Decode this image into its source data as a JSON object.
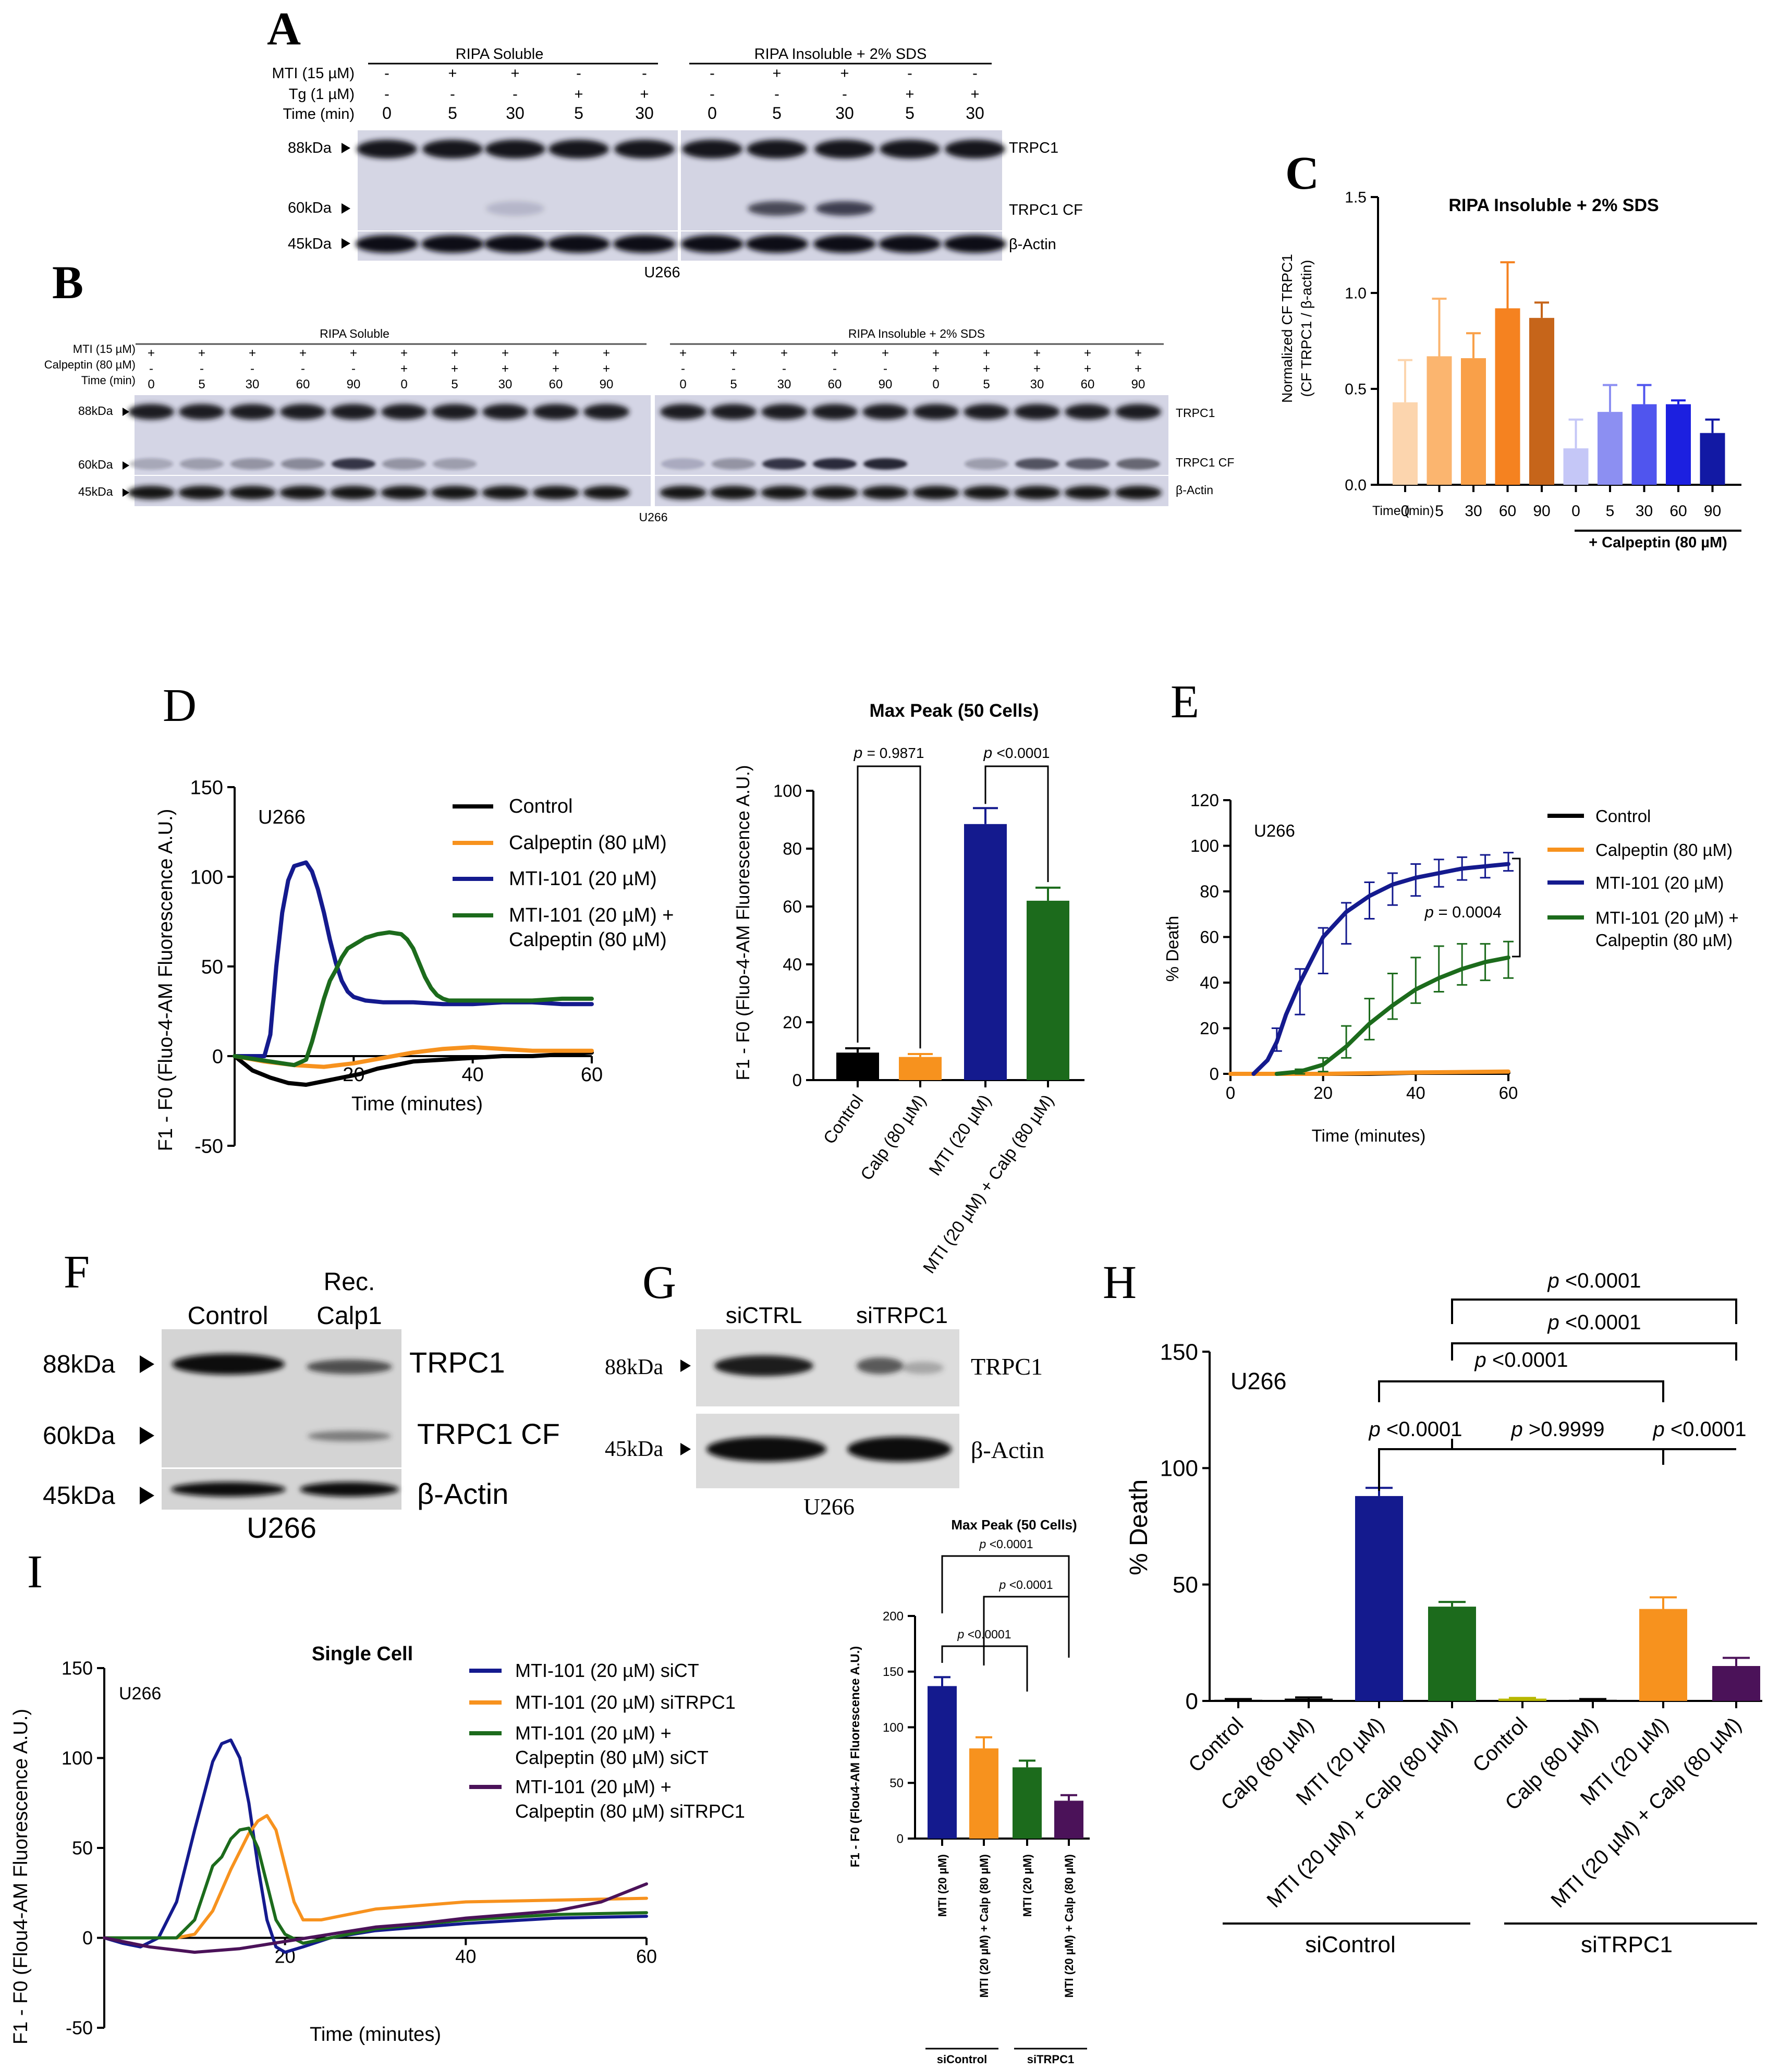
{
  "panels": {
    "A": "A",
    "B": "B",
    "C": "C",
    "D": "D",
    "E": "E",
    "F": "F",
    "G": "G",
    "H": "H",
    "I": "I"
  },
  "blotA": {
    "col_soluble": "RIPA Soluble",
    "col_insoluble": "RIPA Insoluble + 2% SDS",
    "row_labels": [
      "MTI (15 µM)",
      "Tg (1 µM)",
      "Time (min)"
    ],
    "mti": [
      "-",
      "+",
      "+",
      "-",
      "-",
      "-",
      "+",
      "+",
      "-",
      "-"
    ],
    "tg": [
      "-",
      "-",
      "-",
      "+",
      "+",
      "-",
      "-",
      "-",
      "+",
      "+"
    ],
    "time": [
      "0",
      "5",
      "30",
      "5",
      "30",
      "0",
      "5",
      "30",
      "5",
      "30"
    ],
    "mw": [
      "88kDa",
      "60kDa",
      "45kDa"
    ],
    "bands": [
      "TRPC1",
      "TRPC1 CF",
      "β-Actin"
    ],
    "cell": "U266"
  },
  "blotB": {
    "col_soluble": "RIPA Soluble",
    "col_insoluble": "RIPA Insoluble + 2% SDS",
    "row_labels": [
      "MTI (15 µM)",
      "Calpeptin (80 µM)",
      "Time (min)"
    ],
    "mti": [
      "+",
      "+",
      "+",
      "+",
      "+",
      "+",
      "+",
      "+",
      "+",
      "+",
      "+",
      "+",
      "+",
      "+",
      "+",
      "+",
      "+",
      "+",
      "+",
      "+"
    ],
    "calp": [
      "-",
      "-",
      "-",
      "-",
      "-",
      "+",
      "+",
      "+",
      "+",
      "+",
      "-",
      "-",
      "-",
      "-",
      "-",
      "+",
      "+",
      "+",
      "+",
      "+"
    ],
    "time": [
      "0",
      "5",
      "30",
      "60",
      "90",
      "0",
      "5",
      "30",
      "60",
      "90",
      "0",
      "5",
      "30",
      "60",
      "90",
      "0",
      "5",
      "30",
      "60",
      "90"
    ],
    "mw": [
      "88kDa",
      "60kDa",
      "45kDa"
    ],
    "bands": [
      "TRPC1",
      "TRPC1 CF",
      "β-Actin"
    ],
    "cell": "U266"
  },
  "blotF": {
    "lanes": [
      "Control",
      "Rec.",
      "Calp1"
    ],
    "mw": [
      "88kDa",
      "60kDa",
      "45kDa"
    ],
    "bands": [
      "TRPC1",
      "TRPC1 CF",
      "β-Actin"
    ],
    "cell": "U266"
  },
  "blotG": {
    "lanes": [
      "siCTRL",
      "siTRPC1"
    ],
    "mw": [
      "88kDa",
      "45kDa"
    ],
    "bands": [
      "TRPC1",
      "β-Actin"
    ],
    "cell": "U266"
  },
  "colors": {
    "black": "#000000",
    "orange": "#F7921E",
    "navy": "#141A8E",
    "green": "#1C6B1C",
    "purple": "#4B1259"
  },
  "chart_data": [
    {
      "id": "C",
      "type": "bar",
      "title": "RIPA Insoluble + 2% SDS",
      "ylabel_line1": "Normalized CF TRPC1",
      "ylabel_line2": "(CF TRPC1 / β-actin)",
      "xlabel": "Time (min)",
      "ylim": [
        0,
        1.5
      ],
      "ytick_labels": [
        "0.0",
        "0.5",
        "1.0",
        "1.5"
      ],
      "categories": [
        "0",
        "5",
        "30",
        "60",
        "90",
        "0",
        "5",
        "30",
        "60",
        "90"
      ],
      "values": [
        0.43,
        0.67,
        0.66,
        0.92,
        0.87,
        0.19,
        0.38,
        0.42,
        0.42,
        0.27
      ],
      "errors": [
        0.22,
        0.3,
        0.13,
        0.24,
        0.08,
        0.15,
        0.14,
        0.1,
        0.02,
        0.07
      ],
      "colors": [
        "#FCD5AE",
        "#FBB56F",
        "#F9A049",
        "#F58220",
        "#C6651A",
        "#C5C7F7",
        "#8C8FF2",
        "#5055EE",
        "#1C20E0",
        "#1219A4"
      ],
      "group_label": "+ Calpeptin (80 µM)"
    },
    {
      "id": "D-line",
      "type": "line",
      "xlabel": "Time (minutes)",
      "ylabel": "F1 - F0 (Fluo-4-AM Fluorescence A.U.)",
      "xlim": [
        0,
        60
      ],
      "ylim": [
        -50,
        150
      ],
      "annotation": "U266",
      "xtick_labels": [
        "20",
        "40",
        "60"
      ],
      "ytick_labels": [
        "-50",
        "0",
        "50",
        "100",
        "150"
      ],
      "series": [
        {
          "name": "Control",
          "color": "#000000",
          "x": [
            0,
            3,
            6,
            9,
            12,
            15,
            18,
            21,
            24,
            27,
            30,
            35,
            40,
            45,
            50,
            55,
            60
          ],
          "y": [
            0,
            -8,
            -12,
            -15,
            -16,
            -14,
            -12,
            -10,
            -7,
            -5,
            -3,
            -2,
            -1,
            0,
            0,
            1,
            2
          ]
        },
        {
          "name": "Calpeptin (80 µM)",
          "color": "#F7921E",
          "x": [
            0,
            5,
            10,
            15,
            20,
            25,
            30,
            35,
            40,
            45,
            50,
            55,
            60
          ],
          "y": [
            0,
            -3,
            -5,
            -6,
            -4,
            -1,
            2,
            4,
            5,
            4,
            3,
            3,
            3
          ]
        },
        {
          "name": "MTI-101 (20 µM)",
          "color": "#141A8E",
          "x": [
            0,
            5,
            6,
            7,
            8,
            9,
            10,
            11,
            12,
            13,
            14,
            15,
            16,
            17,
            18,
            19,
            20,
            22,
            25,
            30,
            35,
            40,
            45,
            50,
            55,
            60
          ],
          "y": [
            0,
            0,
            12,
            50,
            80,
            98,
            106,
            107,
            108,
            103,
            93,
            80,
            65,
            52,
            42,
            36,
            33,
            31,
            30,
            30,
            29,
            29,
            30,
            30,
            29,
            29
          ]
        },
        {
          "name": "MTI-101 (20 µM) + Calpeptin (80 µM)",
          "color": "#1C6B1C",
          "x": [
            0,
            8,
            10,
            12,
            13,
            14,
            15,
            16,
            17,
            18,
            19,
            20,
            22,
            24,
            26,
            28,
            29,
            30,
            31,
            32,
            33,
            34,
            35,
            36,
            38,
            40,
            45,
            50,
            55,
            60
          ],
          "y": [
            0,
            -4,
            -5,
            -2,
            8,
            20,
            32,
            42,
            48,
            55,
            60,
            62,
            66,
            68,
            69,
            68,
            65,
            60,
            52,
            44,
            38,
            34,
            32,
            31,
            31,
            31,
            31,
            31,
            32,
            32
          ]
        }
      ]
    },
    {
      "id": "D-bar",
      "type": "bar",
      "title": "Max Peak (50 Cells)",
      "ylabel": "F1 - F0 (Fluo-4-AM Fluorescence A.U.)",
      "ylim": [
        0,
        100
      ],
      "ytick_labels": [
        "0",
        "20",
        "40",
        "60",
        "80",
        "100"
      ],
      "categories": [
        "Control",
        "Calp (80 µM)",
        "MTI (20 µM)",
        "MTI (20 µM) + Calp (80 µM)"
      ],
      "values": [
        9.5,
        8,
        88.5,
        62
      ],
      "errors": [
        1.5,
        1,
        5.5,
        4.5
      ],
      "colors": [
        "#000000",
        "#F7921E",
        "#141A8E",
        "#1C6B1C"
      ],
      "p_italic": "p",
      "p_values": [
        "= 0.9871",
        "<0.0001"
      ]
    },
    {
      "id": "E",
      "type": "line",
      "xlabel": "Time (minutes)",
      "ylabel": "% Death",
      "xlim": [
        0,
        60
      ],
      "ylim": [
        0,
        120
      ],
      "xtick_labels": [
        "0",
        "20",
        "40",
        "60"
      ],
      "ytick_labels": [
        "0",
        "20",
        "40",
        "60",
        "80",
        "100",
        "120"
      ],
      "annotation": "U266",
      "p_italic": "p",
      "p_value": "= 0.0004",
      "series": [
        {
          "name": "Control",
          "color": "#000000",
          "x": [
            0,
            10,
            20,
            30,
            40,
            50,
            60
          ],
          "y": [
            0,
            0,
            0,
            0,
            0.5,
            0.5,
            0.5
          ]
        },
        {
          "name": "Calpeptin (80 µM)",
          "color": "#F7921E",
          "x": [
            0,
            10,
            20,
            30,
            40,
            50,
            60
          ],
          "y": [
            0,
            0,
            0,
            0.3,
            0.6,
            0.8,
            1
          ]
        },
        {
          "name": "MTI-101 (20 µM)",
          "color": "#141A8E",
          "x": [
            5,
            8,
            10,
            12,
            15,
            18,
            20,
            25,
            30,
            35,
            40,
            45,
            50,
            55,
            60
          ],
          "y": [
            0,
            6,
            14,
            26,
            40,
            52,
            60,
            71,
            78,
            83,
            86,
            88,
            90,
            91,
            92
          ],
          "points_x": [
            10,
            15,
            20,
            25,
            30,
            35,
            40,
            45,
            50,
            55,
            60
          ],
          "points_y": [
            15,
            36,
            54,
            66,
            76,
            81,
            85,
            88,
            90,
            91,
            93
          ],
          "points_err": [
            5,
            10,
            10,
            9,
            8,
            7,
            7,
            6,
            5,
            5,
            4
          ]
        },
        {
          "name": "MTI-101 (20 µM) + Calpeptin (80 µM)",
          "color": "#1C6B1C",
          "x": [
            10,
            15,
            20,
            25,
            30,
            35,
            40,
            45,
            50,
            55,
            60
          ],
          "y": [
            0,
            1,
            4,
            12,
            22,
            30,
            37,
            42,
            46,
            49,
            51
          ],
          "points_x": [
            15,
            20,
            25,
            30,
            35,
            40,
            45,
            50,
            55,
            60
          ],
          "points_y": [
            1,
            4,
            14,
            24,
            34,
            41,
            46,
            48,
            49,
            50
          ],
          "points_err": [
            1,
            3,
            7,
            9,
            10,
            10,
            10,
            9,
            8,
            8
          ]
        }
      ]
    },
    {
      "id": "H",
      "type": "bar",
      "ylabel": "% Death",
      "ylim": [
        0,
        150
      ],
      "ytick_labels": [
        "0",
        "50",
        "100",
        "150"
      ],
      "annotation": "U266",
      "categories": [
        "Control",
        "Calp (80 µM)",
        "MTI (20 µM)",
        "MTI (20 µM) + Calp (80 µM)",
        "Control",
        "Calp (80 µM)",
        "MTI (20 µM)",
        "MTI (20 µM) + Calp (80 µM)"
      ],
      "values": [
        0.5,
        1,
        88,
        40.5,
        1,
        0.5,
        39.5,
        15
      ],
      "errors": [
        0.3,
        0.5,
        3.5,
        2,
        0.3,
        0.3,
        5,
        3.5
      ],
      "colors": [
        "#000000",
        "#000000",
        "#141A8E",
        "#1C6B1C",
        "#B7B700",
        "#000000",
        "#F7921E",
        "#4B1259"
      ],
      "groups": [
        "siControl",
        "siTRPC1"
      ],
      "p_italic": "p",
      "p_values": [
        "<0.0001",
        "<0.0001",
        "<0.0001",
        "<0.0001",
        ">0.9999",
        "<0.0001"
      ]
    },
    {
      "id": "I-line",
      "type": "line",
      "title": "Single Cell",
      "xlabel": "Time (minutes)",
      "ylabel": "F1 - F0 (Flou4-AM Fluorescence A.U.)",
      "xlim": [
        0,
        60
      ],
      "ylim": [
        -50,
        150
      ],
      "annotation": "U266",
      "xtick_labels": [
        "20",
        "40",
        "60"
      ],
      "ytick_labels": [
        "-50",
        "0",
        "50",
        "100",
        "150"
      ],
      "series": [
        {
          "name": "MTI-101 (20 µM)  siCT",
          "color": "#141A8E",
          "x": [
            0,
            2,
            4,
            6,
            8,
            10,
            12,
            13,
            14,
            15,
            16,
            17,
            18,
            19,
            20,
            22,
            25,
            30,
            40,
            50,
            60
          ],
          "y": [
            0,
            -3,
            -5,
            0,
            20,
            60,
            98,
            108,
            110,
            100,
            75,
            40,
            10,
            -5,
            -8,
            -5,
            0,
            4,
            8,
            11,
            12
          ]
        },
        {
          "name": "MTI-101 (20 µM) siTRPC1",
          "color": "#F7921E",
          "x": [
            0,
            8,
            10,
            12,
            14,
            16,
            17,
            18,
            19,
            20,
            21,
            22,
            24,
            26,
            30,
            35,
            40,
            50,
            60
          ],
          "y": [
            0,
            0,
            2,
            15,
            38,
            58,
            65,
            68,
            60,
            40,
            20,
            10,
            10,
            12,
            16,
            18,
            20,
            21,
            22
          ]
        },
        {
          "name": "MTI-101 (20 µM) + Calpeptin (80 µM) siCT",
          "color": "#1C6B1C",
          "x": [
            0,
            8,
            10,
            11,
            12,
            13,
            14,
            15,
            16,
            17,
            18,
            19,
            20,
            22,
            25,
            30,
            40,
            50,
            60
          ],
          "y": [
            0,
            0,
            10,
            25,
            40,
            45,
            55,
            60,
            61,
            50,
            30,
            10,
            2,
            -3,
            0,
            5,
            10,
            13,
            14
          ]
        },
        {
          "name": "MTI-101 (20 µM) + Calpeptin (80 µM) siTRPC1",
          "color": "#4B1259",
          "x": [
            0,
            5,
            10,
            15,
            20,
            25,
            30,
            35,
            40,
            45,
            50,
            55,
            58,
            60
          ],
          "y": [
            0,
            -5,
            -8,
            -6,
            -2,
            2,
            6,
            8,
            11,
            13,
            15,
            20,
            26,
            30
          ]
        }
      ],
      "legend_lines": [
        "MTI-101 (20 µM)  siCT",
        "MTI-101 (20 µM) siTRPC1",
        "MTI-101 (20 µM) +",
        "Calpeptin (80 µM) siCT",
        "MTI-101 (20 µM) +",
        "Calpeptin (80 µM) siTRPC1"
      ]
    },
    {
      "id": "I-bar",
      "type": "bar",
      "title": "Max Peak (50 Cells)",
      "ylabel": "F1 - F0 (Flou4-AM Fluorescence A.U.)",
      "ylim": [
        0,
        200
      ],
      "ytick_labels": [
        "0",
        "50",
        "100",
        "150",
        "200"
      ],
      "categories": [
        "MTI (20 µM)",
        "MTI (20 µM) + Calp (80 µM)",
        "MTI (20 µM)",
        "MTI (20 µM) + Calp (80 µM)"
      ],
      "values": [
        137,
        81,
        64,
        34
      ],
      "errors": [
        8,
        10,
        6,
        5
      ],
      "colors": [
        "#141A8E",
        "#F7921E",
        "#1C6B1C",
        "#4B1259"
      ],
      "groups": [
        "siControl",
        "siTRPC1"
      ],
      "p_italic": "p",
      "p_values": [
        "<0.0001",
        "<0.0001",
        "<0.0001"
      ]
    }
  ],
  "legendD": [
    "Control",
    "Calpeptin (80 µM)",
    "MTI-101 (20 µM)",
    "MTI-101 (20 µM) +",
    "Calpeptin (80 µM)"
  ],
  "legendE": [
    "Control",
    "Calpeptin (80 µM)",
    "MTI-101 (20 µM)",
    "MTI-101 (20 µM) +",
    "Calpeptin (80 µM)"
  ]
}
